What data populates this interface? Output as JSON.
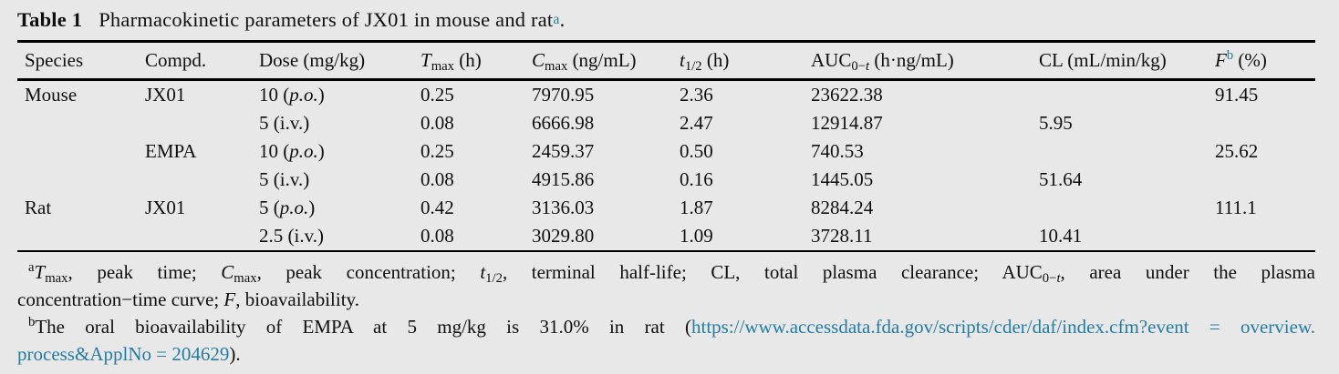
{
  "title": {
    "label": "Table 1",
    "text": "Pharmacokinetic parameters of JX01 in mouse and rat",
    "marker": "a",
    "suffix": "."
  },
  "table": {
    "headers": {
      "species": "Species",
      "compd": "Compd.",
      "dose": "Dose (mg/kg)",
      "tmax": {
        "sym": "T",
        "sub": "max",
        "unit": " (h)"
      },
      "cmax": {
        "sym": "C",
        "sub": "max",
        "unit": " (ng/mL)"
      },
      "thalf": {
        "sym": "t",
        "sub": "1/2",
        "unit": " (h)"
      },
      "auc": {
        "sym": "AUC",
        "sub_pre": "0−",
        "sub_it": "t",
        "unit": " (h·ng/mL)"
      },
      "cl": "CL (mL/min/kg)",
      "f": {
        "sym": "F",
        "sup": "b",
        "unit": " (%)"
      }
    },
    "rows": [
      {
        "species": "Mouse",
        "compd": "JX01",
        "dose": {
          "pre": "10 (",
          "route": "p.o.",
          "italic": true,
          "post": ")"
        },
        "tmax": "0.25",
        "cmax": "7970.95",
        "thalf": "2.36",
        "auc": "23622.38",
        "cl": "",
        "f": "91.45"
      },
      {
        "species": "",
        "compd": "",
        "dose": {
          "pre": "5 (",
          "route": "i.v.",
          "italic": false,
          "post": ")"
        },
        "tmax": "0.08",
        "cmax": "6666.98",
        "thalf": "2.47",
        "auc": "12914.87",
        "cl": "5.95",
        "f": ""
      },
      {
        "species": "",
        "compd": "EMPA",
        "dose": {
          "pre": "10 (",
          "route": "p.o.",
          "italic": true,
          "post": ")"
        },
        "tmax": "0.25",
        "cmax": "2459.37",
        "thalf": "0.50",
        "auc": "740.53",
        "cl": "",
        "f": "25.62"
      },
      {
        "species": "",
        "compd": "",
        "dose": {
          "pre": "5 (",
          "route": "i.v.",
          "italic": false,
          "post": ")"
        },
        "tmax": "0.08",
        "cmax": "4915.86",
        "thalf": "0.16",
        "auc": "1445.05",
        "cl": "51.64",
        "f": ""
      },
      {
        "species": "Rat",
        "compd": "JX01",
        "dose": {
          "pre": "5 (",
          "route": "p.o.",
          "italic": true,
          "post": ")"
        },
        "tmax": "0.42",
        "cmax": "3136.03",
        "thalf": "1.87",
        "auc": "8284.24",
        "cl": "",
        "f": "111.1"
      },
      {
        "species": "",
        "compd": "",
        "dose": {
          "pre": "2.5 (",
          "route": "i.v.",
          "italic": false,
          "post": ")"
        },
        "tmax": "0.08",
        "cmax": "3029.80",
        "thalf": "1.09",
        "auc": "3728.11",
        "cl": "10.41",
        "f": ""
      }
    ]
  },
  "footnotes": {
    "a": {
      "marker": "a",
      "tmax_sym": "T",
      "tmax_sub": "max",
      "seg1": ", peak time; ",
      "cmax_sym": "C",
      "cmax_sub": "max",
      "seg2": ", peak concentration; ",
      "thalf_sym": "t",
      "thalf_sub": "1/2",
      "seg3": ", terminal half-life; CL, total plasma clearance; AUC",
      "auc_sub_pre": "0−",
      "auc_sub_it": "t",
      "seg4": ", area under the plasma",
      "line2_pre": "concentration−time curve; ",
      "line2_sym": "F",
      "line2_post": ", bioavailability."
    },
    "b": {
      "marker": "b",
      "text": "The oral bioavailability of EMPA at 5 mg/kg is 31.0% in rat (",
      "link_line1": "https://www.accessdata.fda.gov/scripts/cder/daf/index.cfm?event = overview.",
      "link_line2": "process&ApplNo = 204629",
      "tail": ")."
    }
  },
  "colors": {
    "accent_teal": "#257da4",
    "background": "#e8e8e8",
    "rule": "#000000"
  }
}
